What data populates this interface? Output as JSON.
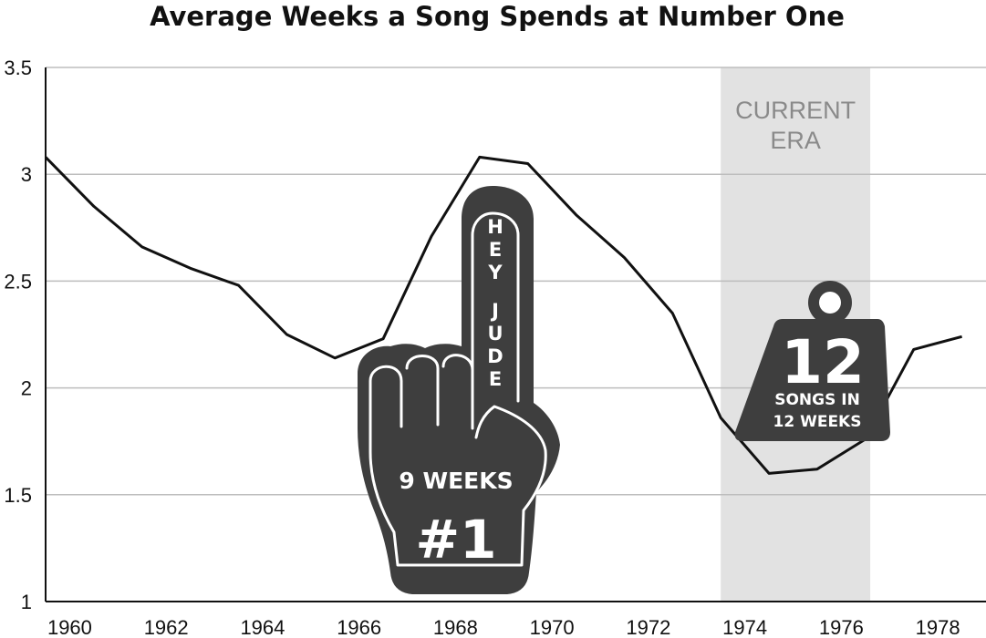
{
  "chart_data": {
    "type": "line",
    "title": "Average Weeks a Song Spends at Number One",
    "xlabel": "",
    "ylabel": "",
    "xlim": [
      1959.5,
      1979
    ],
    "ylim": [
      1,
      3.5
    ],
    "x_ticks": [
      "1960",
      "1962",
      "1964",
      "1966",
      "1968",
      "1970",
      "1972",
      "1974",
      "1976",
      "1978"
    ],
    "x_tick_values": [
      1960,
      1962,
      1964,
      1966,
      1968,
      1970,
      1972,
      1974,
      1976,
      1978
    ],
    "y_ticks": [
      "1",
      "1.5",
      "2",
      "2.5",
      "3",
      "3.5"
    ],
    "y_tick_values": [
      1,
      1.5,
      2,
      2.5,
      3,
      3.5
    ],
    "grid": true,
    "line_color": "#111111",
    "grid_color": "#bdbdbd",
    "x": [
      1959.5,
      1960.5,
      1961.5,
      1962.5,
      1963.5,
      1964.5,
      1965.5,
      1966.5,
      1967.5,
      1968.5,
      1969.5,
      1970.5,
      1971.5,
      1972.5,
      1973.5,
      1974.5,
      1975.5,
      1976.5,
      1977.5,
      1978.5
    ],
    "values": [
      3.08,
      2.85,
      2.66,
      2.56,
      2.48,
      2.25,
      2.14,
      2.23,
      2.71,
      3.08,
      3.05,
      2.81,
      2.61,
      2.35,
      1.86,
      1.6,
      1.62,
      1.76,
      2.18,
      2.24
    ],
    "shaded_region": {
      "from": 1973.5,
      "to": 1976.6,
      "color": "#e2e2e2",
      "label_line1": "CURRENT",
      "label_line2": "ERA"
    },
    "annotations": {
      "hand": {
        "fill": "#3e3e3e",
        "finger_text": [
          "H",
          "E",
          "Y",
          "J",
          "U",
          "D",
          "E"
        ],
        "line1": "9 WEEKS",
        "line2": "#1"
      },
      "weight": {
        "fill": "#3e3e3e",
        "number": "12",
        "line1": "SONGS IN",
        "line2": "12 WEEKS"
      }
    }
  }
}
